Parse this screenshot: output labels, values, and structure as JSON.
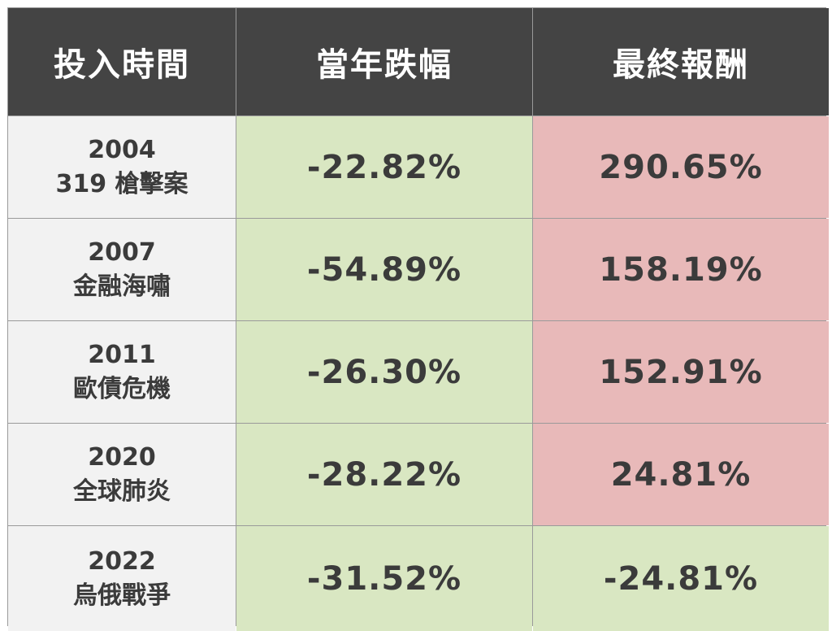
{
  "headers": [
    "投入時間",
    "當年跌幅",
    "最終報酬"
  ],
  "rows": [
    {
      "year": "2004",
      "event": "319 槍擊案",
      "drop": "-22.82%",
      "return": "290.65%",
      "return_status": "positive"
    },
    {
      "year": "2007",
      "event": "金融海嘯",
      "drop": "-54.89%",
      "return": "158.19%",
      "return_status": "positive"
    },
    {
      "year": "2011",
      "event": "歐債危機",
      "drop": "-26.30%",
      "return": "152.91%",
      "return_status": "positive"
    },
    {
      "year": "2020",
      "event": "全球肺炎",
      "drop": "-28.22%",
      "return": "24.81%",
      "return_status": "positive"
    },
    {
      "year": "2022",
      "event": "烏俄戰爭",
      "drop": "-31.52%",
      "return": "-24.81%",
      "return_status": "negative"
    }
  ],
  "colors": {
    "header_bg": "#444444",
    "time_bg": "#f2f2f2",
    "drop_bg": "#d9e7c2",
    "positive_return_bg": "#e8b9b9",
    "negative_return_bg": "#d9e7c2"
  }
}
